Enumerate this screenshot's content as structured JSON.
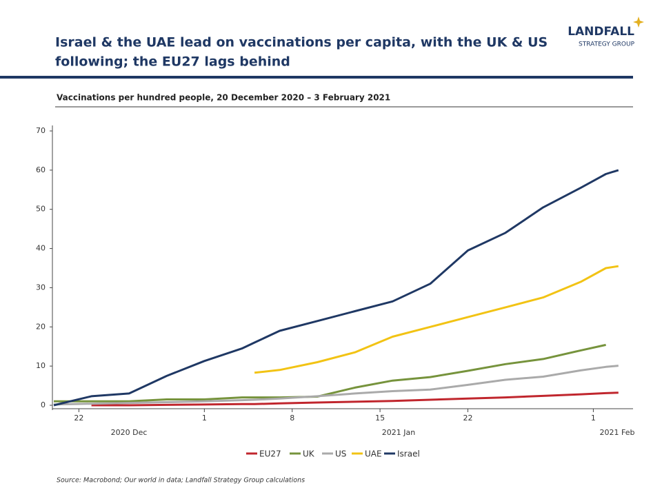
{
  "header": {
    "title_lines": [
      "Israel & the UAE lead on vaccinations per capita, with the UK & US",
      "following; the EU27 lags behind"
    ],
    "logo": [
      "LANDFALL",
      "STRATEGY GROUP"
    ]
  },
  "chart_data": {
    "type": "line",
    "subtitle": "Vaccinations per hundred people, 20 December 2020 – 3 February 2021",
    "x": [
      "2020-12-20",
      "2020-12-23",
      "2020-12-26",
      "2020-12-29",
      "2021-01-01",
      "2021-01-04",
      "2021-01-05",
      "2021-01-07",
      "2021-01-10",
      "2021-01-13",
      "2021-01-16",
      "2021-01-19",
      "2021-01-22",
      "2021-01-25",
      "2021-01-28",
      "2021-01-31",
      "2021-02-02",
      "2021-02-03"
    ],
    "xlim": [
      "2020-12-20",
      "2021-02-04"
    ],
    "xticks": [
      {
        "value": "2020-12-22",
        "label": "22"
      },
      {
        "value": "2021-01-01",
        "label": "1"
      },
      {
        "value": "2021-01-08",
        "label": "8"
      },
      {
        "value": "2021-01-15",
        "label": "15"
      },
      {
        "value": "2021-01-22",
        "label": "22"
      },
      {
        "value": "2021-02-01",
        "label": "1"
      }
    ],
    "x_group_labels": [
      "2020 Dec",
      "2021 Jan",
      "2021 Feb"
    ],
    "ylim": [
      0,
      70
    ],
    "yticks": [
      0,
      10,
      20,
      30,
      40,
      50,
      60,
      70
    ],
    "series": [
      {
        "name": "EU27",
        "color": "#c0262d",
        "values": [
          null,
          0.0,
          0.0,
          0.1,
          0.2,
          0.3,
          0.3,
          0.5,
          0.7,
          0.9,
          1.1,
          1.4,
          1.7,
          2.0,
          2.4,
          2.8,
          3.1,
          3.2
        ]
      },
      {
        "name": "UK",
        "color": "#76933c",
        "values": [
          1.0,
          1.0,
          1.0,
          1.5,
          1.5,
          2.0,
          2.0,
          2.0,
          2.2,
          4.5,
          6.3,
          7.2,
          8.8,
          10.5,
          11.8,
          14.0,
          15.4,
          null
        ]
      },
      {
        "name": "US",
        "color": "#aaaaaa",
        "values": [
          0.2,
          0.4,
          0.6,
          0.8,
          1.0,
          1.3,
          1.4,
          1.7,
          2.3,
          3.0,
          3.6,
          4.0,
          5.2,
          6.5,
          7.3,
          8.9,
          9.8,
          10.1
        ]
      },
      {
        "name": "UAE",
        "color": "#f2c314",
        "values": [
          null,
          null,
          null,
          null,
          null,
          null,
          8.3,
          9.0,
          11.0,
          13.5,
          17.5,
          20.0,
          22.5,
          25.0,
          27.5,
          31.5,
          35.0,
          35.5
        ]
      },
      {
        "name": "Israel",
        "color": "#1f3864",
        "values": [
          0,
          2.3,
          3.0,
          7.5,
          11.3,
          14.5,
          16.0,
          19.0,
          21.5,
          24.0,
          26.5,
          31.0,
          39.5,
          44.0,
          50.5,
          55.5,
          59.0,
          60.0
        ]
      }
    ],
    "source": "Source: Macrobond;  Our world in data; Landfall Strategy Group calculations"
  }
}
